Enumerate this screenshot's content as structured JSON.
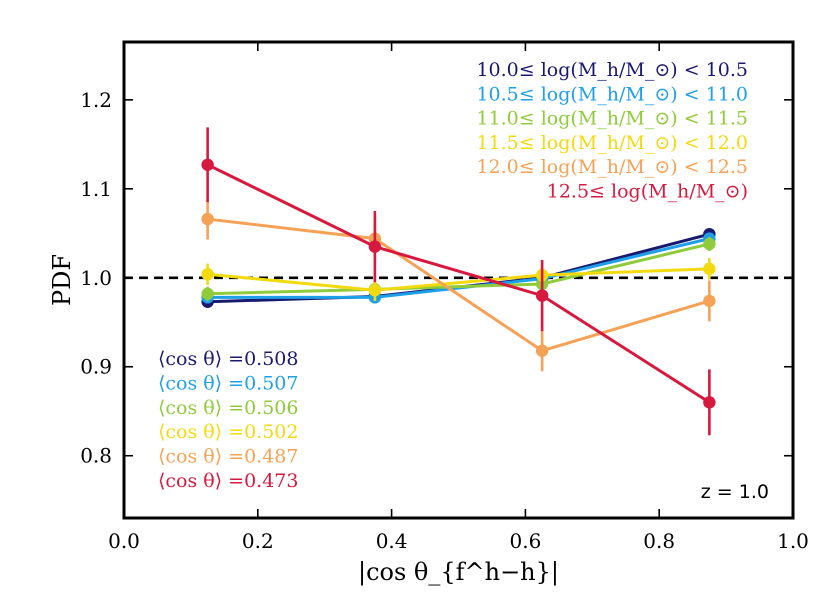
{
  "chart_data": {
    "type": "line",
    "xlabel": "|cos θ_{f^h−h}|",
    "ylabel": "PDF",
    "xlim": [
      0.0,
      1.0
    ],
    "ylim": [
      0.73,
      1.265
    ],
    "x_ticks": [
      "0.0",
      "0.2",
      "0.4",
      "0.6",
      "0.8",
      "1.0"
    ],
    "y_ticks": [
      "0.8",
      "0.9",
      "1.0",
      "1.1",
      "1.2"
    ],
    "x_tick_values": [
      0.0,
      0.2,
      0.4,
      0.6,
      0.8,
      1.0
    ],
    "y_tick_values": [
      0.8,
      0.9,
      1.0,
      1.1,
      1.2
    ],
    "reference_line": 1.0,
    "x": [
      0.125,
      0.375,
      0.625,
      0.875
    ],
    "legend_placement": "top-right",
    "series": [
      {
        "name": "10.0≤ log(M_h/M_⊙) < 10.5",
        "color": "#191970",
        "values": [
          0.973,
          0.979,
          1.0,
          1.049
        ],
        "errors": [
          0.006,
          0.006,
          0.006,
          0.006
        ],
        "mean_label": "⟨cos θ⟩ =0.508"
      },
      {
        "name": "10.5≤ log(M_h/M_⊙) < 11.0",
        "color": "#1E9FE8",
        "values": [
          0.978,
          0.978,
          0.999,
          1.044
        ],
        "errors": [
          0.006,
          0.006,
          0.006,
          0.006
        ],
        "mean_label": "⟨cos θ⟩ =0.507"
      },
      {
        "name": "11.0≤ log(M_h/M_⊙) < 11.5",
        "color": "#8FCB3A",
        "values": [
          0.982,
          0.987,
          0.993,
          1.038
        ],
        "errors": [
          0.008,
          0.008,
          0.008,
          0.008
        ],
        "mean_label": "⟨cos θ⟩ =0.506"
      },
      {
        "name": "11.5≤ log(M_h/M_⊙) < 12.0",
        "color": "#F2DA0F",
        "values": [
          1.004,
          0.986,
          1.003,
          1.01
        ],
        "errors": [
          0.012,
          0.012,
          0.012,
          0.012
        ],
        "mean_label": "⟨cos θ⟩ =0.502"
      },
      {
        "name": "12.0≤ log(M_h/M_⊙) < 12.5",
        "color": "#F6A256",
        "values": [
          1.066,
          1.044,
          0.918,
          0.974
        ],
        "errors": [
          0.023,
          0.023,
          0.023,
          0.023
        ],
        "mean_label": "⟨cos θ⟩ =0.487"
      },
      {
        "name": "12.5≤ log(M_h/M_⊙)",
        "color": "#D7193F",
        "values": [
          1.127,
          1.035,
          0.98,
          0.86
        ],
        "errors": [
          0.042,
          0.04,
          0.04,
          0.037
        ],
        "mean_label": "⟨cos θ⟩ =0.473"
      }
    ],
    "annotation": "z = 1.0"
  }
}
